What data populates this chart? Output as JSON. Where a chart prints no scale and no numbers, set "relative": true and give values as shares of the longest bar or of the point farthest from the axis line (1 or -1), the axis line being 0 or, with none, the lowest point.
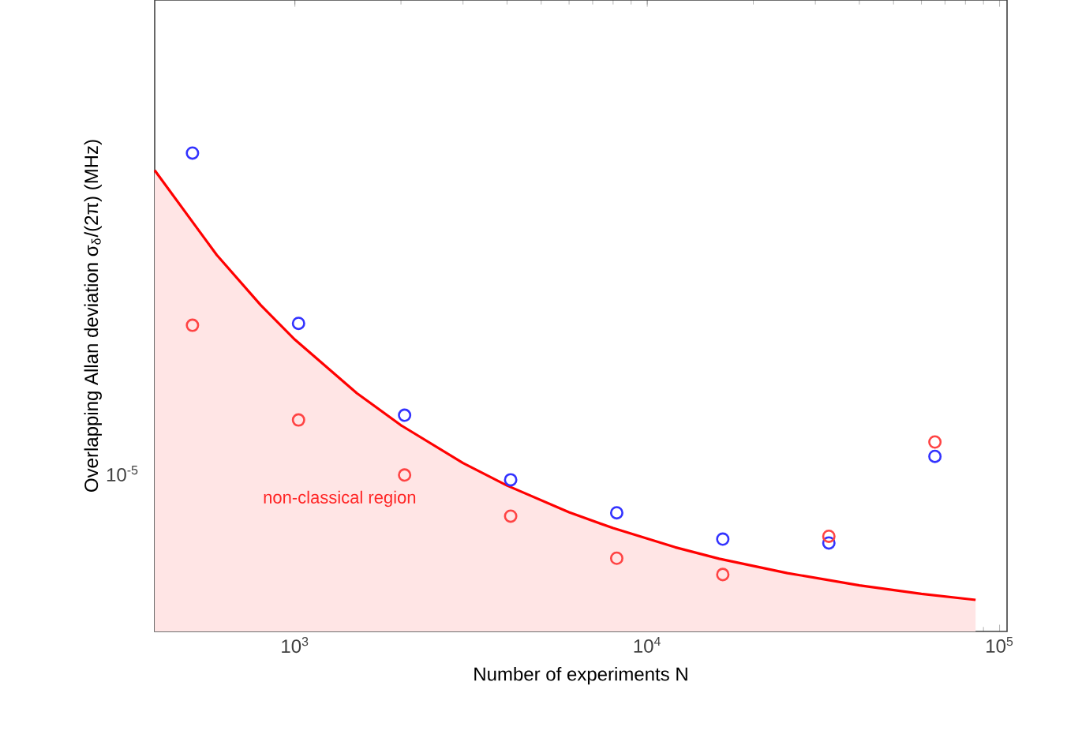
{
  "chart_data": {
    "type": "scatter",
    "xlabel": "Number of experiments N",
    "ylabel": "Overlapping Allan deviation σ$_{δ}$/(2π) (MHz)",
    "log": "x",
    "relative": true,
    "xlim": [
      400,
      105000
    ],
    "xticks": [
      {
        "value": 1000,
        "label": "10$^{3}$"
      },
      {
        "value": 10000,
        "label": "10$^{4}$"
      },
      {
        "value": 100000,
        "label": "10$^{5}$"
      }
    ],
    "marker": "circle",
    "grid": false,
    "x": [
      512,
      1024,
      2048,
      4096,
      8192,
      16384,
      32768,
      65536
    ],
    "series": [
      {
        "color": "#3333ff",
        "values": [
          1,
          0.644,
          0.452,
          0.317,
          0.248,
          0.193,
          0.185,
          0.366
        ]
      },
      {
        "color": "#ff4444",
        "values": [
          0.64,
          0.442,
          0.327,
          0.241,
          0.153,
          0.119,
          0.199,
          0.396
        ]
      },
      {
        "type": "area",
        "marker": "none",
        "color": "#ff0000",
        "x": [
          400,
          600,
          800,
          1000,
          1500,
          2000,
          3000,
          4000,
          6000,
          8000,
          12000,
          16000,
          25000,
          40000,
          60000,
          85500
        ],
        "values": [
          0.964,
          0.787,
          0.682,
          0.61,
          0.498,
          0.431,
          0.352,
          0.305,
          0.249,
          0.216,
          0.176,
          0.152,
          0.122,
          0.0964,
          0.0787,
          0.066
        ]
      }
    ],
    "annotations": [
      "10$^{-5}$",
      "non-classical region"
    ]
  }
}
